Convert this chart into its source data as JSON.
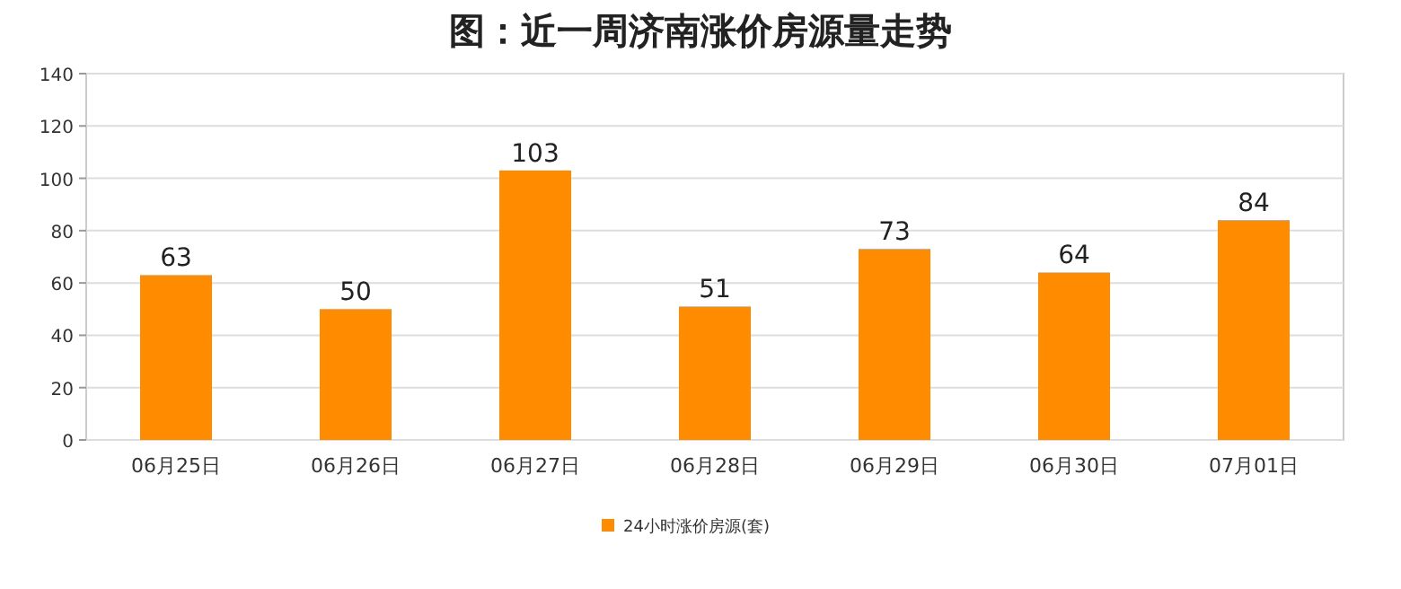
{
  "chart_data": {
    "type": "bar",
    "title": "图：近一周济南涨价房源量走势",
    "categories": [
      "06月25日",
      "06月26日",
      "06月27日",
      "06月28日",
      "06月29日",
      "06月30日",
      "07月01日"
    ],
    "series": [
      {
        "name": "24小时涨价房源(套)",
        "color": "#ff8c00",
        "values": [
          63,
          50,
          103,
          51,
          73,
          64,
          84
        ]
      }
    ],
    "ylim": [
      0,
      140
    ],
    "yticks": [
      0,
      20,
      40,
      60,
      80,
      100,
      120,
      140
    ],
    "grid": "y",
    "legend": "bottom",
    "data_labels": true
  }
}
